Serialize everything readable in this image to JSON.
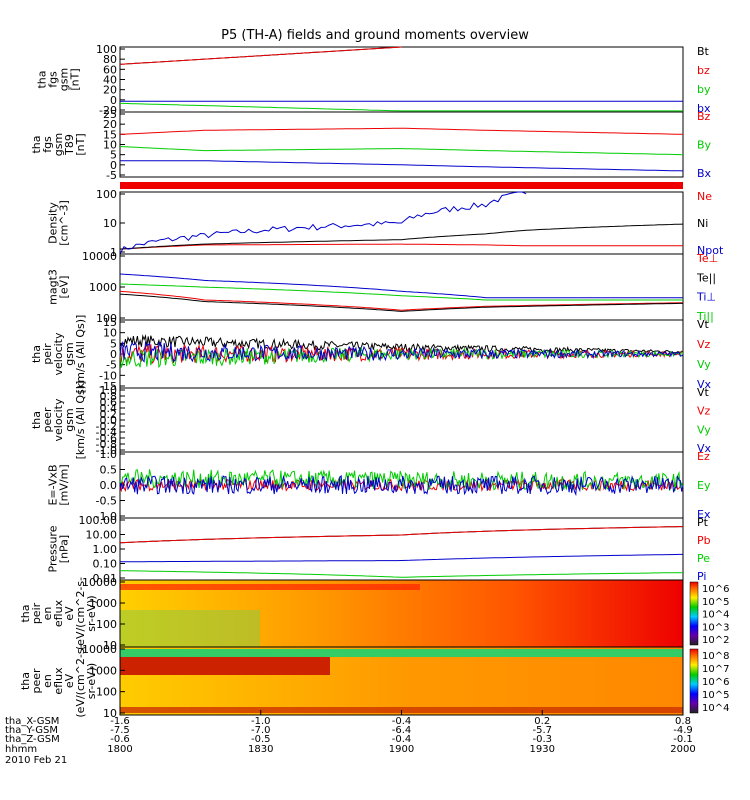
{
  "title": "P5 (TH-A) fields and ground moments overview",
  "footer_rows": [
    {
      "label": "tha_X-GSM",
      "values": [
        "-1.6",
        "-1.0",
        "-0.4",
        "0.2",
        "0.8"
      ]
    },
    {
      "label": "tha_Y-GSM",
      "values": [
        "-7.5",
        "-7.0",
        "-6.4",
        "-5.7",
        "-4.9"
      ]
    },
    {
      "label": "tha_Z-GSM",
      "values": [
        "-0.6",
        "-0.5",
        "-0.4",
        "-0.3",
        "-0.1"
      ]
    },
    {
      "label": "hhmm",
      "values": [
        "1800",
        "1830",
        "1900",
        "1930",
        "2000"
      ]
    }
  ],
  "date": "2010 Feb 21",
  "colors": {
    "black": "#000000",
    "red": "#ee0000",
    "green": "#00cc00",
    "blue": "#0000cc"
  },
  "chart_data": [
    {
      "type": "line",
      "ylabel_lines": [
        "tha",
        "fgs",
        "gsm",
        "[nT]"
      ],
      "yticks": [
        "100",
        "80",
        "60",
        "40",
        "20",
        "0",
        "-20"
      ],
      "ylim": [
        -20,
        100
      ],
      "x": [
        1800,
        1900,
        2000
      ],
      "series": [
        {
          "name": "Bt",
          "color": "#000000",
          "values": [
            68,
            100,
            null
          ]
        },
        {
          "name": "bz",
          "color": "#ee0000",
          "values": [
            68,
            100,
            null
          ]
        },
        {
          "name": "by",
          "color": "#00cc00",
          "values": [
            -4,
            -18,
            -18
          ]
        },
        {
          "name": "bx",
          "color": "#0000cc",
          "values": [
            0,
            0,
            0
          ]
        }
      ]
    },
    {
      "type": "line",
      "ylabel_lines": [
        "tha",
        "fgs",
        "gsm",
        "T89",
        "[nT]"
      ],
      "yticks": [
        "25",
        "20",
        "15",
        "10",
        "5",
        "0",
        "-5"
      ],
      "ylim": [
        -7,
        25
      ],
      "x": [
        1800,
        1830,
        1900,
        1930,
        2000
      ],
      "series": [
        {
          "name": "Bz",
          "color": "#ee0000",
          "values": [
            14,
            16,
            17,
            16,
            14
          ]
        },
        {
          "name": "By",
          "color": "#00cc00",
          "values": [
            8,
            6,
            7,
            6,
            4
          ]
        },
        {
          "name": "Bx",
          "color": "#0000cc",
          "values": [
            1,
            1,
            -1,
            -2,
            -4
          ]
        }
      ]
    },
    {
      "type": "line",
      "ylabel_lines": [
        "Density",
        "[cm^-3]"
      ],
      "yticks": [
        "100",
        "10",
        "1"
      ],
      "ylog": true,
      "ylim": [
        0.5,
        200
      ],
      "x": [
        1800,
        1830,
        1900,
        1930,
        1945,
        2000
      ],
      "series": [
        {
          "name": "Ne",
          "color": "#ee0000",
          "values": [
            0.8,
            1.2,
            1.3,
            1.2,
            1.1,
            1.1
          ]
        },
        {
          "name": "Ni",
          "color": "#000000",
          "values": [
            0.8,
            1.3,
            2.0,
            3.5,
            5.0,
            9.0
          ]
        },
        {
          "name": "Npot",
          "color": "#0000cc",
          "values": [
            0.7,
            3.0,
            10.0,
            60.0,
            200.0,
            null
          ]
        }
      ]
    },
    {
      "type": "line",
      "ylabel_lines": [
        "magt3",
        "[eV]"
      ],
      "yticks": [
        "10000",
        "1000",
        "100"
      ],
      "ylog": true,
      "ylim": [
        50,
        10000
      ],
      "x": [
        1800,
        1830,
        1900,
        1930,
        2000
      ],
      "series": [
        {
          "name": "Te⊥",
          "color": "#ee0000",
          "values": [
            500,
            250,
            110,
            150,
            200
          ]
        },
        {
          "name": "Te||",
          "color": "#000000",
          "values": [
            400,
            220,
            100,
            140,
            190
          ]
        },
        {
          "name": "Ti⊥",
          "color": "#0000cc",
          "values": [
            2000,
            1200,
            500,
            300,
            300
          ]
        },
        {
          "name": "Ti||",
          "color": "#00cc00",
          "values": [
            900,
            700,
            350,
            250,
            250
          ]
        }
      ]
    },
    {
      "type": "line",
      "ylabel_lines": [
        "tha",
        "peir",
        "velocity",
        "gsm",
        "[km/s (All Qs)]"
      ],
      "yticks": [
        "15",
        "10",
        "5",
        "0",
        "-5",
        "-10",
        "-15"
      ],
      "ylim": [
        -15,
        15
      ],
      "x": [
        1800,
        1900,
        2000
      ],
      "series": [
        {
          "name": "Vt",
          "color": "#000000",
          "values": [
            6,
            3,
            1
          ]
        },
        {
          "name": "Vz",
          "color": "#ee0000",
          "values": [
            0,
            0,
            0
          ]
        },
        {
          "name": "Vy",
          "color": "#00cc00",
          "values": [
            -2,
            0,
            0
          ]
        },
        {
          "name": "Vx",
          "color": "#0000cc",
          "values": [
            1,
            0,
            0
          ]
        }
      ]
    },
    {
      "type": "line",
      "ylabel_lines": [
        "tha",
        "peer",
        "velocity",
        "gsm",
        "[km/s (All Qs)]"
      ],
      "yticks": [
        "1.0",
        "0.8",
        "0.6",
        "0.4",
        "0.2",
        "0.0",
        "-0.2",
        "-0.4",
        "-0.6",
        "-0.8",
        "-1.0"
      ],
      "ylim": [
        -1,
        1
      ],
      "series": [
        {
          "name": "Vt",
          "color": "#000000",
          "values": []
        },
        {
          "name": "Vz",
          "color": "#ee0000",
          "values": []
        },
        {
          "name": "Vy",
          "color": "#00cc00",
          "values": []
        },
        {
          "name": "Vx",
          "color": "#0000cc",
          "values": []
        }
      ]
    },
    {
      "type": "line",
      "ylabel_lines": [
        "E=-VxB",
        "[mV/m]"
      ],
      "yticks": [
        "1.0",
        "0.5",
        "0.0",
        "-0.5",
        "-1.0"
      ],
      "ylim": [
        -1,
        1
      ],
      "x": [
        1800,
        1900,
        2000
      ],
      "series": [
        {
          "name": "Ez",
          "color": "#ee0000",
          "values": [
            0,
            0,
            0
          ]
        },
        {
          "name": "Ey",
          "color": "#00cc00",
          "values": [
            0.2,
            0.15,
            0.1
          ]
        },
        {
          "name": "Ex",
          "color": "#0000cc",
          "values": [
            0,
            0,
            0
          ]
        }
      ]
    },
    {
      "type": "line",
      "ylabel_lines": [
        "Pressure",
        "[nPa]"
      ],
      "yticks": [
        "100.00",
        "10.00",
        "1.00",
        "0.10",
        "0.01"
      ],
      "ylog": true,
      "ylim": [
        0.01,
        100
      ],
      "x": [
        1800,
        1900,
        2000
      ],
      "series": [
        {
          "name": "Pt",
          "color": "#000000",
          "values": [
            2.5,
            8,
            28
          ]
        },
        {
          "name": "Pb",
          "color": "#ee0000",
          "values": [
            2.5,
            8,
            28
          ]
        },
        {
          "name": "Pe",
          "color": "#00cc00",
          "values": [
            0.04,
            0.015,
            0.03
          ]
        },
        {
          "name": "Pi",
          "color": "#0000cc",
          "values": [
            0.15,
            0.18,
            0.45
          ]
        }
      ]
    },
    {
      "type": "heatmap",
      "ylabel_lines": [
        "tha",
        "peir",
        "en",
        "eflux",
        "eV",
        "(eV/(cm^2-s-",
        "sr-eV))"
      ],
      "yticks": [
        "10000",
        "1000",
        "100",
        "10"
      ],
      "colorbar_ticks": [
        "10^6",
        "10^5",
        "10^4",
        "10^3",
        "10^2"
      ]
    },
    {
      "type": "heatmap",
      "ylabel_lines": [
        "tha",
        "peer",
        "en",
        "eflux",
        "eV",
        "(eV/(cm^2-s-",
        "sr-eV))"
      ],
      "yticks": [
        "10000",
        "1000",
        "100",
        "10"
      ],
      "colorbar_ticks": [
        "10^8",
        "10^7",
        "10^6",
        "10^5",
        "10^4"
      ]
    }
  ]
}
